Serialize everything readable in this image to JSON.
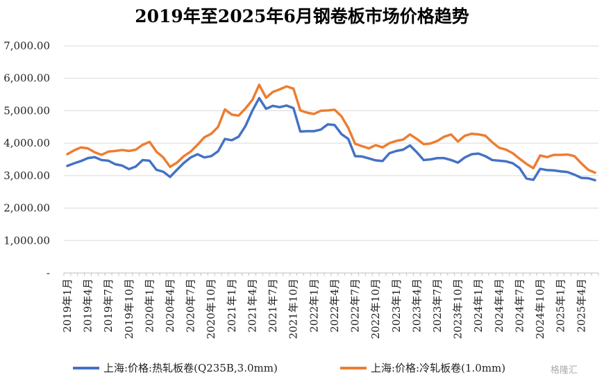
{
  "chart_data": {
    "type": "line",
    "title": "2019年至2025年6月钢卷板市场价格趋势",
    "xlabel": "",
    "ylabel": "",
    "ylim": [
      0,
      7000
    ],
    "yticks": [
      {
        "value": 0,
        "label": "-"
      },
      {
        "value": 1000,
        "label": "1,000.00"
      },
      {
        "value": 2000,
        "label": "2,000.00"
      },
      {
        "value": 3000,
        "label": "3,000.00"
      },
      {
        "value": 4000,
        "label": "4,000.00"
      },
      {
        "value": 5000,
        "label": "5,000.00"
      },
      {
        "value": 6000,
        "label": "6,000.00"
      },
      {
        "value": 7000,
        "label": "7,000.00"
      }
    ],
    "grid": true,
    "legend": "bottom",
    "tick_labels": [
      {
        "index": 0,
        "label": "2019年1月"
      },
      {
        "index": 3,
        "label": "2019年4月"
      },
      {
        "index": 6,
        "label": "2019年7月"
      },
      {
        "index": 9,
        "label": "2019年10月"
      },
      {
        "index": 12,
        "label": "2020年1月"
      },
      {
        "index": 15,
        "label": "2020年4月"
      },
      {
        "index": 18,
        "label": "2020年7月"
      },
      {
        "index": 21,
        "label": "2020年10月"
      },
      {
        "index": 24,
        "label": "2021年1月"
      },
      {
        "index": 27,
        "label": "2021年4月"
      },
      {
        "index": 30,
        "label": "2021年7月"
      },
      {
        "index": 33,
        "label": "2021年10月"
      },
      {
        "index": 36,
        "label": "2022年1月"
      },
      {
        "index": 39,
        "label": "2022年4月"
      },
      {
        "index": 42,
        "label": "2022年7月"
      },
      {
        "index": 45,
        "label": "2022年10月"
      },
      {
        "index": 48,
        "label": "2023年1月"
      },
      {
        "index": 51,
        "label": "2023年4月"
      },
      {
        "index": 54,
        "label": "2023年7月"
      },
      {
        "index": 57,
        "label": "2023年10月"
      },
      {
        "index": 60,
        "label": "2024年1月"
      },
      {
        "index": 63,
        "label": "2024年4月"
      },
      {
        "index": 66,
        "label": "2024年7月"
      },
      {
        "index": 69,
        "label": "2024年10月"
      },
      {
        "index": 72,
        "label": "2025年1月"
      },
      {
        "index": 75,
        "label": "2025年4月"
      }
    ],
    "series": [
      {
        "name": "上海:价格:热轧板卷(Q235B,3.0mm)",
        "color": "#4472C4",
        "values": [
          3300,
          3380,
          3450,
          3540,
          3570,
          3480,
          3460,
          3350,
          3310,
          3200,
          3280,
          3480,
          3460,
          3180,
          3120,
          2960,
          3180,
          3390,
          3560,
          3660,
          3560,
          3600,
          3750,
          4130,
          4090,
          4200,
          4530,
          5000,
          5390,
          5060,
          5150,
          5110,
          5160,
          5080,
          4360,
          4370,
          4370,
          4420,
          4580,
          4560,
          4280,
          4130,
          3600,
          3590,
          3530,
          3470,
          3450,
          3690,
          3760,
          3800,
          3930,
          3720,
          3480,
          3500,
          3540,
          3540,
          3480,
          3400,
          3560,
          3660,
          3680,
          3600,
          3480,
          3460,
          3440,
          3380,
          3230,
          2910,
          2870,
          3210,
          3170,
          3160,
          3130,
          3110,
          3030,
          2930,
          2920,
          2860
        ]
      },
      {
        "name": "上海:价格:冷轧板卷(1.0mm)",
        "color": "#ED7D31",
        "values": [
          3660,
          3780,
          3870,
          3840,
          3720,
          3640,
          3740,
          3760,
          3790,
          3760,
          3800,
          3950,
          4040,
          3740,
          3560,
          3270,
          3400,
          3600,
          3740,
          3950,
          4180,
          4290,
          4500,
          5040,
          4880,
          4850,
          5070,
          5330,
          5800,
          5400,
          5580,
          5660,
          5750,
          5680,
          5010,
          4940,
          4900,
          5000,
          5010,
          5030,
          4830,
          4470,
          3980,
          3910,
          3840,
          3940,
          3870,
          4000,
          4070,
          4110,
          4270,
          4130,
          3970,
          3990,
          4070,
          4200,
          4270,
          4050,
          4230,
          4290,
          4270,
          4230,
          4030,
          3860,
          3800,
          3690,
          3520,
          3360,
          3230,
          3620,
          3570,
          3640,
          3640,
          3650,
          3600,
          3380,
          3180,
          3090
        ]
      }
    ]
  },
  "watermark": "格隆汇"
}
